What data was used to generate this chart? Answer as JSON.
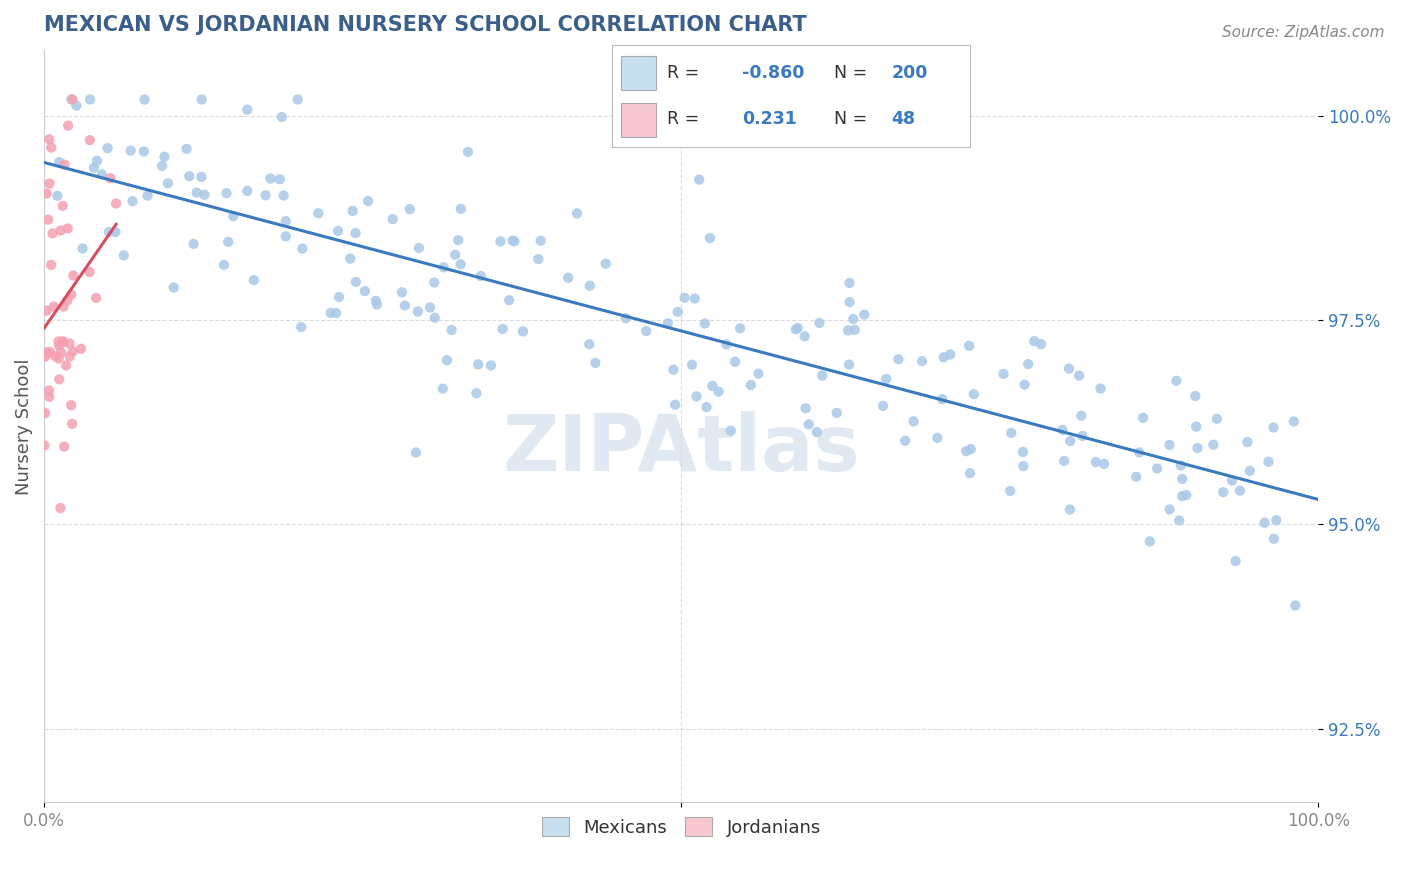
{
  "title": "MEXICAN VS JORDANIAN NURSERY SCHOOL CORRELATION CHART",
  "source": "Source: ZipAtlas.com",
  "ylabel": "Nursery School",
  "legend_labels": [
    "Mexicans",
    "Jordanians"
  ],
  "legend_r": [
    -0.86,
    0.231
  ],
  "legend_n": [
    200,
    48
  ],
  "ytick_labels": [
    "92.5%",
    "95.0%",
    "97.5%",
    "100.0%"
  ],
  "ytick_values": [
    0.925,
    0.95,
    0.975,
    1.0
  ],
  "xmin": 0.0,
  "xmax": 1.0,
  "ymin": 0.916,
  "ymax": 1.008,
  "blue_scatter_color": "#a8c8e8",
  "pink_scatter_color": "#f4a0b0",
  "blue_line_color": "#3a7abf",
  "pink_line_color": "#d45060",
  "title_color": "#3a5f8a",
  "watermark_color": "#c8d8e8",
  "background_color": "#ffffff",
  "legend_box_blue": "#c8dff0",
  "legend_box_pink": "#f8c8d0",
  "legend_text_color": "#3a7abf",
  "grid_color": "#cccccc",
  "ylabel_color": "#555555",
  "tick_color": "#888888",
  "title_fontsize": 15,
  "source_fontsize": 11,
  "ytick_fontsize": 12,
  "xtick_fontsize": 12
}
